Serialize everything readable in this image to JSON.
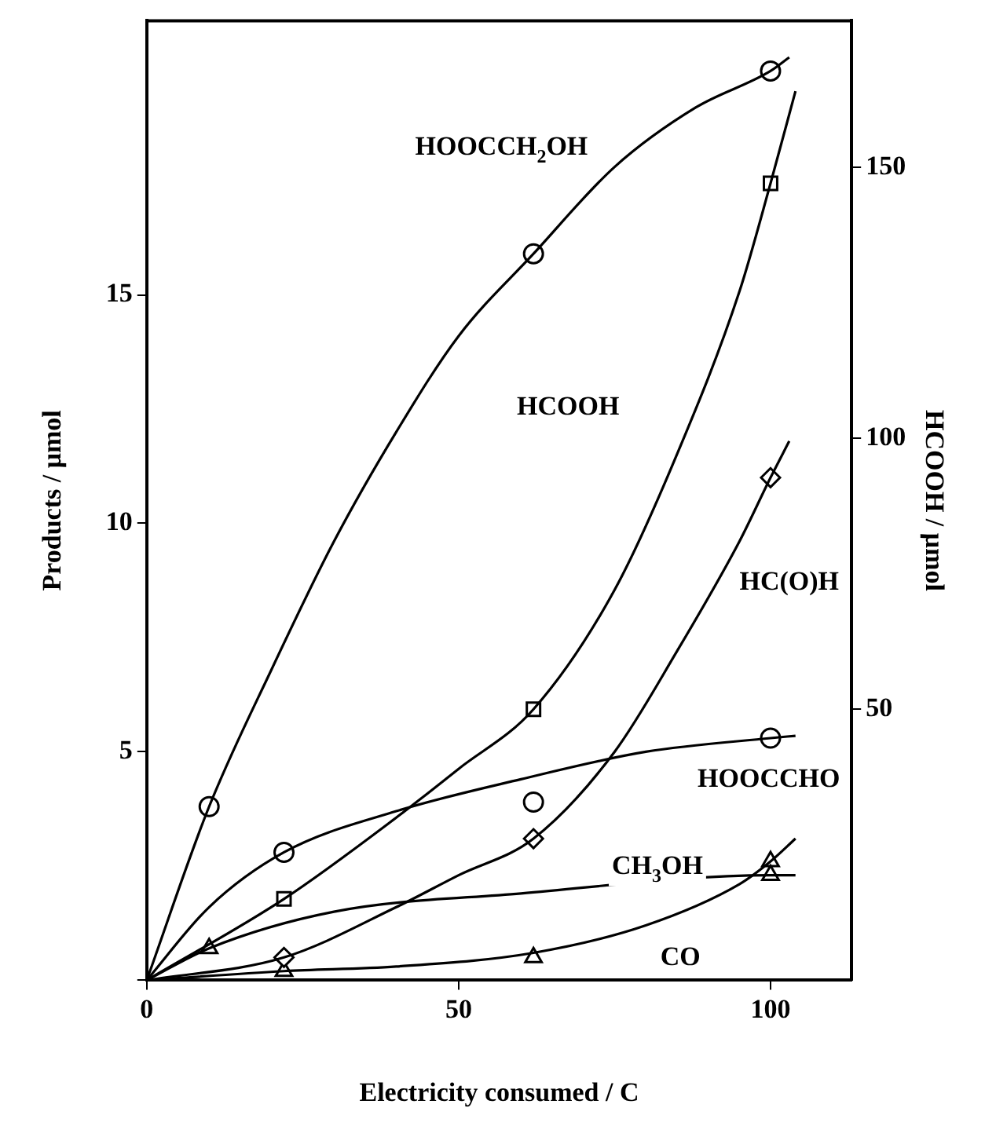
{
  "chart_data": {
    "type": "scatter",
    "xlabel": "Electricity consumed / C",
    "ylabel": "Products / μmol",
    "y2label": "HCOOH / μmol",
    "xlim": [
      0,
      113
    ],
    "xticks": [
      0,
      50,
      100
    ],
    "ylim": [
      0,
      21
    ],
    "yticks": [
      {
        "value": 0,
        "label": null
      },
      5,
      10,
      15
    ],
    "y2lim": [
      0,
      177
    ],
    "y2ticks": [
      50,
      100,
      150
    ],
    "grid": false,
    "legend": false,
    "line_style": "solid",
    "series": [
      {
        "name": "HOOCCH$_{2}$OH",
        "type": "line",
        "marker": "none",
        "color": "#000000",
        "x": [
          0,
          10,
          20,
          30,
          40,
          50,
          62,
          75,
          88,
          100,
          103
        ],
        "values": [
          0,
          3.8,
          6.8,
          9.6,
          12,
          14.1,
          15.9,
          17.8,
          19.1,
          19.9,
          20.2
        ]
      },
      {
        "marker": "circle",
        "color": "#000000",
        "x": [
          10,
          62,
          100
        ],
        "values": [
          3.8,
          15.9,
          19.9
        ]
      },
      {
        "name": "HCOOH",
        "type": "line",
        "marker": "none",
        "color": "#000000",
        "axis": "y2",
        "x": [
          0,
          22,
          40,
          50,
          62,
          75,
          85,
          95,
          100,
          104
        ],
        "values": [
          0,
          15,
          30,
          39,
          50,
          72,
          97,
          127,
          147,
          164
        ]
      },
      {
        "marker": "square",
        "color": "#000000",
        "axis": "y2",
        "x": [
          22,
          62,
          100
        ],
        "values": [
          15,
          50,
          147
        ]
      },
      {
        "name": "HC(O)H",
        "type": "line",
        "marker": "none",
        "color": "#000000",
        "x": [
          0,
          22,
          40,
          50,
          62,
          75,
          85,
          95,
          100,
          103
        ],
        "values": [
          0,
          0.5,
          1.6,
          2.3,
          3.1,
          5,
          7.2,
          9.6,
          11,
          11.8
        ]
      },
      {
        "marker": "diamond",
        "color": "#000000",
        "x": [
          22,
          62,
          100
        ],
        "values": [
          0.5,
          3.1,
          11
        ]
      },
      {
        "name": "HOOCCHO",
        "type": "line",
        "marker": "none",
        "color": "#000000",
        "x": [
          0,
          10,
          22,
          40,
          60,
          80,
          100,
          104
        ],
        "values": [
          0,
          1.6,
          2.8,
          3.7,
          4.4,
          5,
          5.3,
          5.35
        ]
      },
      {
        "marker": "circle",
        "color": "#000000",
        "x": [
          22,
          62,
          100
        ],
        "values": [
          2.8,
          3.9,
          5.3
        ]
      },
      {
        "name": "CH$_{3}$OH",
        "type": "line",
        "marker": "none",
        "color": "#000000",
        "x": [
          0,
          10,
          30,
          60,
          100,
          104
        ],
        "values": [
          0,
          0.7,
          1.5,
          1.9,
          2.3,
          2.3
        ]
      },
      {
        "marker": "triangle",
        "color": "#000000",
        "x": [
          10,
          100
        ],
        "values": [
          0.7,
          2.3
        ]
      },
      {
        "name": "CO",
        "type": "line",
        "marker": "none",
        "color": "#000000",
        "x": [
          0,
          22,
          40,
          62,
          80,
          95,
          100,
          104
        ],
        "values": [
          0,
          0.2,
          0.3,
          0.6,
          1.2,
          2.1,
          2.6,
          3.1
        ]
      },
      {
        "marker": "triangle",
        "color": "#000000",
        "x": [
          22,
          62,
          100
        ],
        "values": [
          0.2,
          0.5,
          2.6
        ]
      }
    ]
  }
}
